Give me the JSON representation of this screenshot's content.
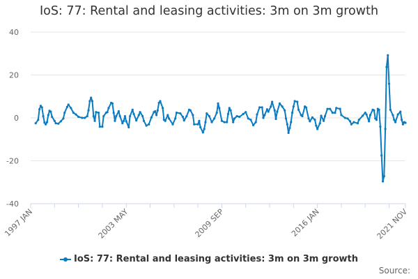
{
  "chart_data": {
    "type": "line",
    "title": "IoS: 77: Rental and leasing activities: 3m on 3m growth",
    "xlabel": "",
    "ylabel": "",
    "x_range": [
      "1997-01",
      "2021-11"
    ],
    "ylim": [
      -40,
      40
    ],
    "y_ticks": [
      40,
      20,
      0,
      -20,
      -40
    ],
    "x_tick_labels": [
      "1997 JAN",
      "2003 MAY",
      "2009 SEP",
      "2016 JAN",
      "2021 NOV"
    ],
    "x_tick_label_dates": [
      "1997-01",
      "2003-05",
      "2009-09",
      "2016-01",
      "2021-11"
    ],
    "grid": "horizontal",
    "legend_position": "bottom",
    "color": "#0a7bc1",
    "series": [
      {
        "name": "IoS: 77: Rental and leasing activities: 3m on 3m growth",
        "points": [
          [
            "1997-05",
            -2.5
          ],
          [
            "1997-07",
            -0.9
          ],
          [
            "1997-08",
            4.0
          ],
          [
            "1997-09",
            5.6
          ],
          [
            "1997-10",
            4.9
          ],
          [
            "1997-11",
            0.8
          ],
          [
            "1997-12",
            -2.2
          ],
          [
            "1998-01",
            -3.0
          ],
          [
            "1998-02",
            -2.0
          ],
          [
            "1998-03",
            1.3
          ],
          [
            "1998-04",
            3.3
          ],
          [
            "1998-05",
            2.9
          ],
          [
            "1998-06",
            0.5
          ],
          [
            "1998-08",
            -1.4
          ],
          [
            "1998-09",
            -2.5
          ],
          [
            "1998-11",
            -2.7
          ],
          [
            "1999-01",
            -1.6
          ],
          [
            "1999-03",
            -0.3
          ],
          [
            "1999-04",
            2.4
          ],
          [
            "1999-06",
            5.1
          ],
          [
            "1999-07",
            6.2
          ],
          [
            "1999-09",
            4.6
          ],
          [
            "1999-11",
            2.4
          ],
          [
            "2000-01",
            1.6
          ],
          [
            "2000-03",
            0.5
          ],
          [
            "2000-06",
            0.0
          ],
          [
            "2000-08",
            0.0
          ],
          [
            "2000-10",
            0.8
          ],
          [
            "2000-11",
            3.5
          ],
          [
            "2000-12",
            7.8
          ],
          [
            "2001-01",
            9.4
          ],
          [
            "2001-02",
            7.8
          ],
          [
            "2001-03",
            0.8
          ],
          [
            "2001-04",
            -1.4
          ],
          [
            "2001-05",
            2.7
          ],
          [
            "2001-07",
            2.4
          ],
          [
            "2001-08",
            -4.1
          ],
          [
            "2001-10",
            -4.1
          ],
          [
            "2001-11",
            0.8
          ],
          [
            "2002-01",
            2.4
          ],
          [
            "2002-02",
            2.7
          ],
          [
            "2002-03",
            4.6
          ],
          [
            "2002-05",
            7.0
          ],
          [
            "2002-06",
            6.7
          ],
          [
            "2002-07",
            2.4
          ],
          [
            "2002-08",
            -1.4
          ],
          [
            "2002-09",
            0.8
          ],
          [
            "2002-11",
            3.1
          ],
          [
            "2002-12",
            0.8
          ],
          [
            "2003-02",
            -2.5
          ],
          [
            "2003-03",
            -1.4
          ],
          [
            "2003-04",
            0.8
          ],
          [
            "2003-05",
            -1.6
          ],
          [
            "2003-07",
            -4.4
          ],
          [
            "2003-08",
            0.8
          ],
          [
            "2003-10",
            3.8
          ],
          [
            "2003-11",
            1.8
          ],
          [
            "2004-01",
            -1.2
          ],
          [
            "2004-03",
            1.3
          ],
          [
            "2004-04",
            2.7
          ],
          [
            "2004-06",
            0.8
          ],
          [
            "2004-07",
            -1.4
          ],
          [
            "2004-09",
            -3.6
          ],
          [
            "2004-11",
            -3.0
          ],
          [
            "2005-01",
            0.2
          ],
          [
            "2005-03",
            2.7
          ],
          [
            "2005-04",
            3.1
          ],
          [
            "2005-05",
            1.3
          ],
          [
            "2005-06",
            3.5
          ],
          [
            "2005-07",
            7.0
          ],
          [
            "2005-08",
            7.8
          ],
          [
            "2005-10",
            4.6
          ],
          [
            "2005-11",
            -0.9
          ],
          [
            "2005-12",
            -1.4
          ],
          [
            "2006-02",
            1.3
          ],
          [
            "2006-03",
            -0.3
          ],
          [
            "2006-06",
            -3.0
          ],
          [
            "2006-08",
            -0.3
          ],
          [
            "2006-09",
            2.4
          ],
          [
            "2006-12",
            2.1
          ],
          [
            "2007-02",
            0.5
          ],
          [
            "2007-03",
            -1.2
          ],
          [
            "2007-05",
            0.8
          ],
          [
            "2007-07",
            3.8
          ],
          [
            "2007-08",
            3.5
          ],
          [
            "2007-10",
            1.3
          ],
          [
            "2007-11",
            -3.0
          ],
          [
            "2008-02",
            -3.0
          ],
          [
            "2008-03",
            -1.4
          ],
          [
            "2008-04",
            -4.4
          ],
          [
            "2008-06",
            -6.8
          ],
          [
            "2008-07",
            -5.2
          ],
          [
            "2008-08",
            -2.0
          ],
          [
            "2008-09",
            2.1
          ],
          [
            "2008-11",
            0.8
          ],
          [
            "2009-01",
            -2.0
          ],
          [
            "2009-03",
            -0.3
          ],
          [
            "2009-05",
            2.4
          ],
          [
            "2009-06",
            6.7
          ],
          [
            "2009-07",
            4.6
          ],
          [
            "2009-09",
            -1.4
          ],
          [
            "2009-11",
            -2.0
          ],
          [
            "2010-01",
            -2.0
          ],
          [
            "2010-02",
            1.8
          ],
          [
            "2010-03",
            4.6
          ],
          [
            "2010-04",
            3.5
          ],
          [
            "2010-06",
            -2.0
          ],
          [
            "2010-07",
            -0.3
          ],
          [
            "2010-09",
            0.8
          ],
          [
            "2010-11",
            0.5
          ],
          [
            "2011-02",
            1.8
          ],
          [
            "2011-04",
            2.7
          ],
          [
            "2011-06",
            -0.3
          ],
          [
            "2011-08",
            -0.9
          ],
          [
            "2011-10",
            -3.4
          ],
          [
            "2011-12",
            -2.0
          ],
          [
            "2012-01",
            1.6
          ],
          [
            "2012-03",
            4.9
          ],
          [
            "2012-05",
            4.9
          ],
          [
            "2012-06",
            0.0
          ],
          [
            "2012-07",
            1.3
          ],
          [
            "2012-09",
            4.0
          ],
          [
            "2012-10",
            2.9
          ],
          [
            "2012-12",
            5.3
          ],
          [
            "2013-01",
            7.5
          ],
          [
            "2013-03",
            3.5
          ],
          [
            "2013-04",
            -0.5
          ],
          [
            "2013-05",
            2.9
          ],
          [
            "2013-07",
            6.7
          ],
          [
            "2013-09",
            5.3
          ],
          [
            "2013-11",
            3.5
          ],
          [
            "2013-12",
            -0.3
          ],
          [
            "2014-01",
            -3.0
          ],
          [
            "2014-02",
            -7.0
          ],
          [
            "2014-03",
            -4.7
          ],
          [
            "2014-04",
            -2.0
          ],
          [
            "2014-05",
            2.4
          ],
          [
            "2014-06",
            5.3
          ],
          [
            "2014-07",
            7.8
          ],
          [
            "2014-09",
            7.5
          ],
          [
            "2014-10",
            3.8
          ],
          [
            "2014-12",
            1.3
          ],
          [
            "2015-01",
            0.8
          ],
          [
            "2015-03",
            5.3
          ],
          [
            "2015-04",
            4.9
          ],
          [
            "2015-06",
            -0.3
          ],
          [
            "2015-07",
            -1.6
          ],
          [
            "2015-09",
            0.2
          ],
          [
            "2015-11",
            -0.9
          ],
          [
            "2015-12",
            -3.6
          ],
          [
            "2016-01",
            -5.2
          ],
          [
            "2016-03",
            -2.5
          ],
          [
            "2016-04",
            1.0
          ],
          [
            "2016-06",
            -1.4
          ],
          [
            "2016-07",
            0.8
          ],
          [
            "2016-09",
            4.2
          ],
          [
            "2016-11",
            4.2
          ],
          [
            "2017-01",
            2.4
          ],
          [
            "2017-03",
            2.4
          ],
          [
            "2017-04",
            4.6
          ],
          [
            "2017-07",
            4.2
          ],
          [
            "2017-08",
            1.3
          ],
          [
            "2017-11",
            0.0
          ],
          [
            "2018-01",
            -0.3
          ],
          [
            "2018-03",
            -1.6
          ],
          [
            "2018-04",
            -3.0
          ],
          [
            "2018-06",
            -2.0
          ],
          [
            "2018-09",
            -2.5
          ],
          [
            "2018-10",
            -0.9
          ],
          [
            "2019-01",
            1.0
          ],
          [
            "2019-03",
            2.4
          ],
          [
            "2019-04",
            1.6
          ],
          [
            "2019-06",
            -1.6
          ],
          [
            "2019-07",
            1.3
          ],
          [
            "2019-09",
            3.8
          ],
          [
            "2019-10",
            3.5
          ],
          [
            "2019-11",
            -0.3
          ],
          [
            "2019-12",
            -0.9
          ],
          [
            "2020-01",
            4.2
          ],
          [
            "2020-02",
            3.8
          ],
          [
            "2020-03",
            -4.1
          ],
          [
            "2020-04",
            -17.5
          ],
          [
            "2020-05",
            -29.6
          ],
          [
            "2020-06",
            -27.2
          ],
          [
            "2020-07",
            -5.2
          ],
          [
            "2020-08",
            23.7
          ],
          [
            "2020-09",
            29.2
          ],
          [
            "2020-10",
            15.9
          ],
          [
            "2020-11",
            3.8
          ],
          [
            "2021-01",
            1.3
          ],
          [
            "2021-02",
            -0.9
          ],
          [
            "2021-03",
            -2.0
          ],
          [
            "2021-05",
            1.6
          ],
          [
            "2021-07",
            2.9
          ],
          [
            "2021-08",
            -0.9
          ],
          [
            "2021-09",
            -3.0
          ],
          [
            "2021-10",
            -2.0
          ],
          [
            "2021-11",
            -2.3
          ]
        ]
      }
    ],
    "source_label": "Source:"
  }
}
